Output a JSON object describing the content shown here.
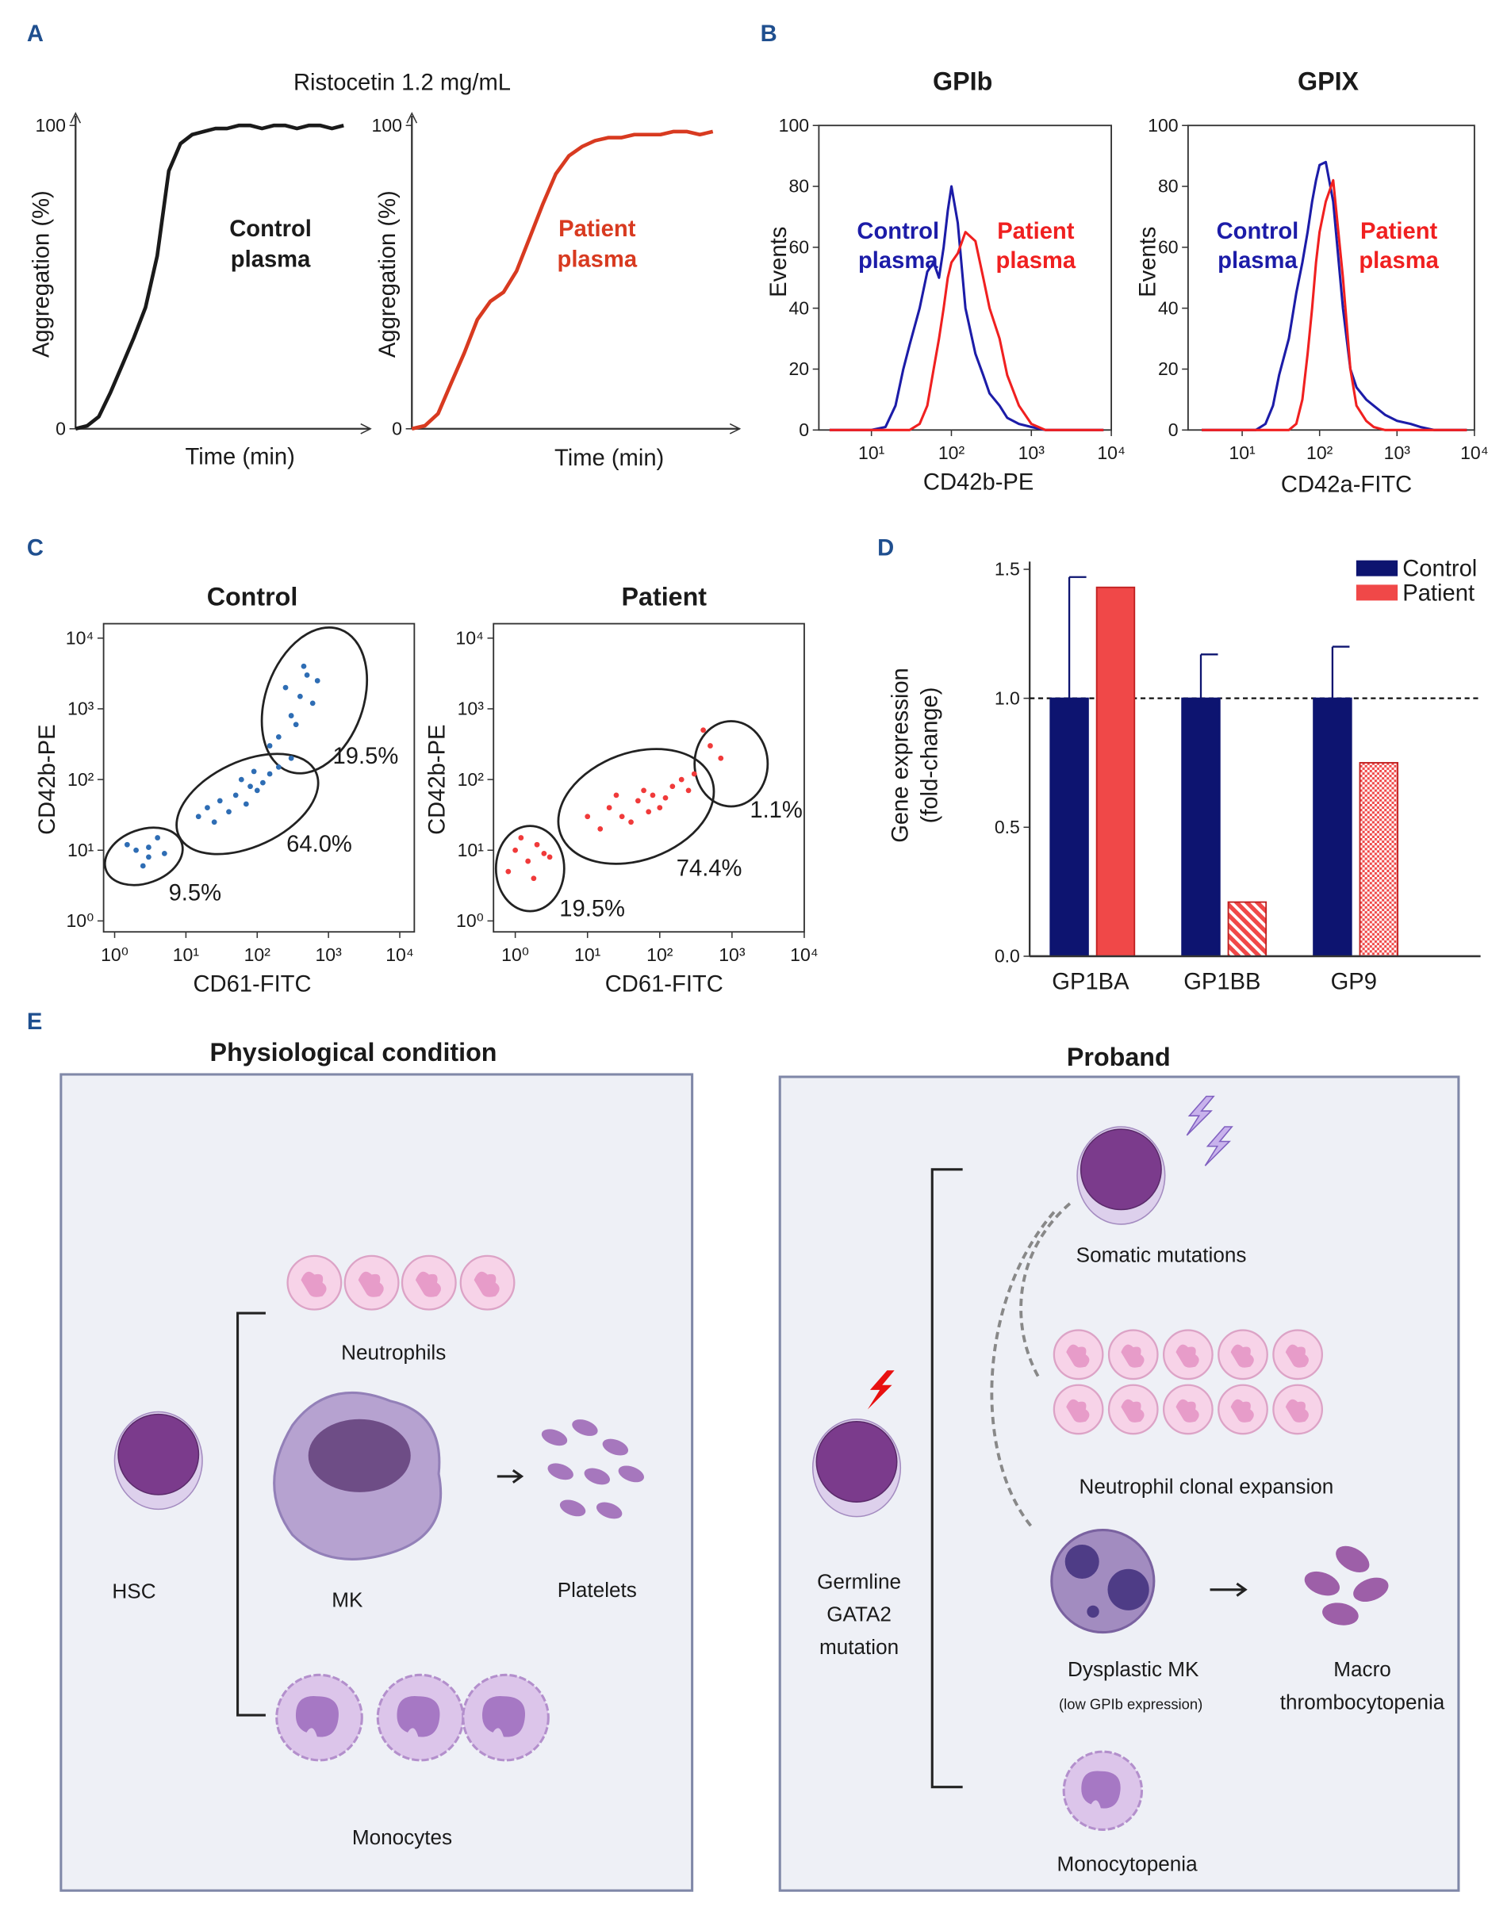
{
  "panel_labels": [
    "A",
    "B",
    "C",
    "D",
    "E"
  ],
  "panel_a_title": "Ristocetin 1.2 mg/mL",
  "chart_data": [
    {
      "type": "line",
      "ylabel": "Aggregation (%)",
      "xlabel": "Time (min)",
      "ylim": [
        0,
        100
      ],
      "yticks": [
        0,
        100
      ],
      "annotation": [
        "Control",
        "plasma"
      ],
      "series": [
        {
          "color": "#1a1a1a",
          "values": [
            0,
            1,
            4,
            12,
            21,
            30,
            40,
            57,
            85,
            94,
            97,
            98,
            99,
            99,
            100,
            100,
            99,
            100,
            100,
            99,
            100,
            100,
            99,
            100
          ]
        }
      ]
    },
    {
      "type": "line",
      "ylabel": "Aggregation (%)",
      "xlabel": "Time (min)",
      "ylim": [
        0,
        100
      ],
      "yticks": [
        0,
        100
      ],
      "annotation": [
        "Patient",
        "plasma"
      ],
      "series": [
        {
          "color": "#d83a20",
          "values": [
            0,
            1,
            5,
            15,
            25,
            36,
            42,
            45,
            52,
            63,
            74,
            84,
            90,
            93,
            95,
            96,
            96,
            97,
            97,
            97,
            98,
            98,
            97,
            98
          ]
        }
      ]
    },
    {
      "type": "line",
      "title": "GPIb",
      "xlabel": "CD42b-PE",
      "ylabel": "Events",
      "xscale": "log",
      "xlim": [
        2.2,
        10000
      ],
      "xticks": [
        {
          "value": 10,
          "label": "10¹"
        },
        {
          "value": 100,
          "label": "10²"
        },
        {
          "value": 1000,
          "label": "10³"
        },
        {
          "value": 10000,
          "label": "10⁴"
        }
      ],
      "ylim": [
        0,
        100
      ],
      "yticks": [
        0,
        20,
        40,
        60,
        80,
        100
      ],
      "x": [
        3,
        10,
        15,
        20,
        25,
        30,
        40,
        50,
        60,
        70,
        80,
        90,
        100,
        120,
        150,
        200,
        250,
        300,
        400,
        500,
        700,
        1000,
        1500,
        2000,
        3000,
        8000
      ],
      "series": [
        {
          "name": [
            "Control",
            "plasma"
          ],
          "color": "#1c1ca8",
          "values": [
            0,
            0,
            1,
            8,
            20,
            28,
            40,
            52,
            55,
            50,
            60,
            72,
            80,
            68,
            40,
            25,
            18,
            12,
            8,
            4,
            2,
            1,
            0,
            0,
            0,
            0
          ]
        },
        {
          "name": [
            "Patient",
            "plasma"
          ],
          "color": "#f02020",
          "values": [
            0,
            0,
            0,
            0,
            0,
            0,
            2,
            8,
            20,
            30,
            40,
            50,
            55,
            58,
            65,
            62,
            50,
            40,
            30,
            18,
            8,
            2,
            0,
            0,
            0,
            0
          ]
        }
      ]
    },
    {
      "type": "line",
      "title": "GPIX",
      "xlabel": "CD42a-FITC",
      "ylabel": "Events",
      "xscale": "log",
      "xlim": [
        2,
        10000
      ],
      "xticks": [
        {
          "value": 10,
          "label": "10¹"
        },
        {
          "value": 100,
          "label": "10²"
        },
        {
          "value": 1000,
          "label": "10³"
        },
        {
          "value": 10000,
          "label": "10⁴"
        }
      ],
      "ylim": [
        0,
        100
      ],
      "yticks": [
        0,
        20,
        40,
        60,
        80,
        100
      ],
      "x": [
        3,
        10,
        15,
        20,
        25,
        30,
        40,
        50,
        60,
        70,
        80,
        90,
        100,
        120,
        150,
        200,
        250,
        300,
        400,
        500,
        700,
        1000,
        1500,
        2000,
        3000,
        8000
      ],
      "series": [
        {
          "name": [
            "Control",
            "plasma"
          ],
          "color": "#1c1ca8",
          "values": [
            0,
            0,
            0,
            2,
            8,
            18,
            30,
            45,
            55,
            65,
            75,
            82,
            87,
            88,
            75,
            40,
            20,
            14,
            10,
            8,
            5,
            3,
            2,
            1,
            0,
            0
          ]
        },
        {
          "name": [
            "Patient",
            "plasma"
          ],
          "color": "#f02020",
          "values": [
            0,
            0,
            0,
            0,
            0,
            0,
            0,
            2,
            10,
            25,
            40,
            55,
            65,
            75,
            82,
            50,
            20,
            8,
            3,
            1,
            0,
            0,
            0,
            0,
            0,
            0
          ]
        }
      ]
    },
    {
      "type": "scatter",
      "title": "Control",
      "xlabel": "CD61-FITC",
      "ylabel": "CD42b-PE",
      "xscale": "log",
      "yscale": "log",
      "xlim": [
        0.7,
        16000
      ],
      "ylim": [
        0.7,
        16000
      ],
      "xticks": [
        {
          "value": 1,
          "label": "10⁰"
        },
        {
          "value": 10,
          "label": "10¹"
        },
        {
          "value": 100,
          "label": "10²"
        },
        {
          "value": 1000,
          "label": "10³"
        },
        {
          "value": 10000,
          "label": "10⁴"
        }
      ],
      "yticks": [
        {
          "value": 1,
          "label": "10⁰"
        },
        {
          "value": 10,
          "label": "10¹"
        },
        {
          "value": 100,
          "label": "10²"
        },
        {
          "value": 1000,
          "label": "10³"
        },
        {
          "value": 10000,
          "label": "10⁴"
        }
      ],
      "gates": [
        "9.5%",
        "64.0%",
        "19.5%"
      ],
      "series": [
        {
          "color": "#2e6db4",
          "x": [
            2,
            3,
            1.5,
            4,
            2.5,
            5,
            3,
            15,
            20,
            30,
            50,
            80,
            100,
            60,
            150,
            40,
            120,
            200,
            25,
            70,
            300,
            90,
            200,
            300,
            400,
            250,
            500,
            350,
            600,
            450,
            150,
            700
          ],
          "y": [
            10,
            8,
            12,
            15,
            6,
            9,
            11,
            30,
            40,
            50,
            60,
            80,
            70,
            100,
            120,
            35,
            90,
            150,
            25,
            45,
            200,
            130,
            400,
            800,
            1500,
            2000,
            3000,
            600,
            1200,
            4000,
            300,
            2500
          ]
        }
      ]
    },
    {
      "type": "scatter",
      "title": "Patient",
      "xlabel": "CD61-FITC",
      "ylabel": "CD42b-PE",
      "xscale": "log",
      "yscale": "log",
      "xlim": [
        0.5,
        10000
      ],
      "ylim": [
        0.7,
        16000
      ],
      "xticks": [
        {
          "value": 1,
          "label": "10⁰"
        },
        {
          "value": 10,
          "label": "10¹"
        },
        {
          "value": 100,
          "label": "10²"
        },
        {
          "value": 1000,
          "label": "10³"
        },
        {
          "value": 10000,
          "label": "10⁴"
        }
      ],
      "yticks": [
        {
          "value": 1,
          "label": "10⁰"
        },
        {
          "value": 10,
          "label": "10¹"
        },
        {
          "value": 100,
          "label": "10²"
        },
        {
          "value": 1000,
          "label": "10³"
        },
        {
          "value": 10000,
          "label": "10⁴"
        }
      ],
      "gates": [
        "19.5%",
        "74.4%",
        "1.1%"
      ],
      "series": [
        {
          "color": "#f03a3a",
          "x": [
            1,
            1.5,
            2,
            0.8,
            2.5,
            1.2,
            1.8,
            3,
            10,
            20,
            30,
            50,
            80,
            100,
            150,
            200,
            40,
            60,
            15,
            300,
            120,
            25,
            70,
            250,
            500,
            700,
            400
          ],
          "y": [
            10,
            7,
            12,
            5,
            9,
            15,
            4,
            8,
            30,
            40,
            30,
            50,
            60,
            40,
            80,
            100,
            25,
            70,
            20,
            120,
            55,
            60,
            35,
            70,
            300,
            200,
            500
          ]
        }
      ]
    },
    {
      "type": "bar",
      "ylabel": [
        "Gene expression",
        "(fold-change)"
      ],
      "categories": [
        "GP1BA",
        "GP1BB",
        "GP9"
      ],
      "ylim": [
        0,
        1.53
      ],
      "yticks": [
        {
          "value": 0,
          "label": "0.0"
        },
        0.5,
        {
          "value": 1,
          "label": "1.0"
        },
        1.5
      ],
      "reference_line": 1,
      "legend": "top-right",
      "series": [
        {
          "name": "Control",
          "color": "#0d1470",
          "values": [
            1,
            1,
            1
          ],
          "errors": [
            0.47,
            0.17,
            0.2
          ]
        },
        {
          "name": "Patient",
          "color": "#f04848",
          "values": [
            1.43,
            0.21,
            0.75
          ],
          "patterns": [
            "solid",
            "hatch",
            "check"
          ]
        }
      ]
    }
  ],
  "diagram": {
    "left": {
      "title": "Physiological condition",
      "neutrophils": "Neutrophils",
      "hsc": "HSC",
      "mk": "MK",
      "platelets": "Platelets",
      "monocytes": "Monocytes"
    },
    "right": {
      "title": "Proband",
      "somatic": "Somatic mutations",
      "neutrophils": "Neutrophil clonal expansion",
      "germline": [
        "Germline",
        "GATA2",
        "mutation"
      ],
      "mk": "Dysplastic MK",
      "mk_note": "(low GPIb expression)",
      "platelets": [
        "Macro",
        "thrombocytopenia"
      ],
      "monocytes": "Monocytopenia"
    }
  }
}
